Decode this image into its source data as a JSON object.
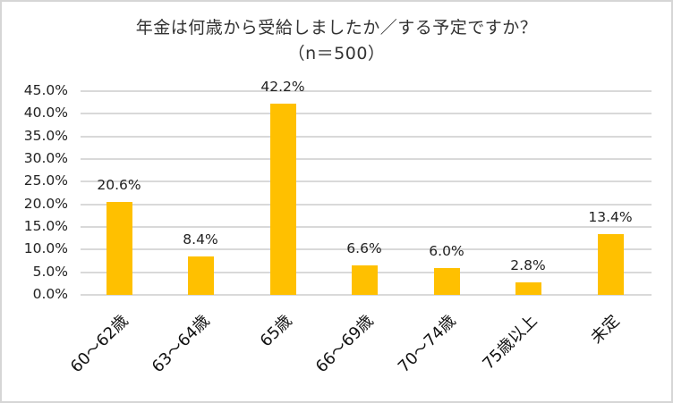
{
  "chart_data": {
    "type": "bar",
    "title": "年金は何歳から受給しましたか／する予定ですか？",
    "subtitle": "（n＝500）",
    "categories": [
      "60～62歳",
      "63～64歳",
      "65歳",
      "66～69歳",
      "70～74歳",
      "75歳以上",
      "未定"
    ],
    "values": [
      20.6,
      8.4,
      42.2,
      6.6,
      6.0,
      2.8,
      13.4
    ],
    "data_labels": [
      "20.6%",
      "8.4%",
      "42.2%",
      "6.6%",
      "6.0%",
      "2.8%",
      "13.4%"
    ],
    "xlabel": "",
    "ylabel": "",
    "ylim": [
      0,
      45
    ],
    "yticks": [
      "0.0%",
      "5.0%",
      "10.0%",
      "15.0%",
      "20.0%",
      "25.0%",
      "30.0%",
      "35.0%",
      "40.0%",
      "45.0%"
    ],
    "grid": true,
    "legend": "none",
    "bar_color": "#ffc000",
    "grid_color": "#d9d9d9"
  }
}
